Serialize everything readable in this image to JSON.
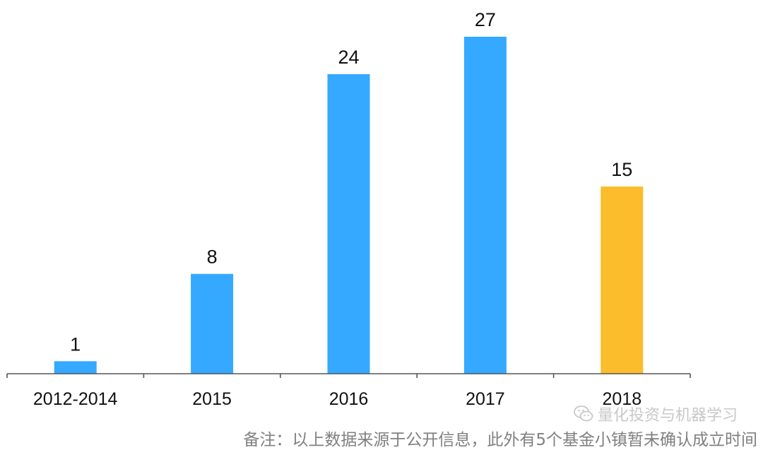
{
  "chart_data": {
    "type": "bar",
    "categories": [
      "2012-2014",
      "2015",
      "2016",
      "2017",
      "2018"
    ],
    "values": [
      1,
      8,
      24,
      27,
      15
    ],
    "bar_colors": [
      "#35a9ff",
      "#35a9ff",
      "#35a9ff",
      "#35a9ff",
      "#fbbd2c"
    ],
    "title": "",
    "xlabel": "",
    "ylabel": "",
    "ylim": [
      0,
      27
    ],
    "grid": false,
    "legend": "none",
    "data_labels": [
      "1",
      "8",
      "24",
      "27",
      "15"
    ]
  },
  "watermark": {
    "icon": "wechat-icon",
    "text": "量化投资与机器学习"
  },
  "footnote": "备注：以上数据来源于公开信息，此外有5个基金小镇暂未确认成立时间",
  "colors": {
    "axis": "#555555",
    "label_text": "#111111",
    "note_text": "#808080",
    "watermark_text": "#c8c8c8"
  }
}
